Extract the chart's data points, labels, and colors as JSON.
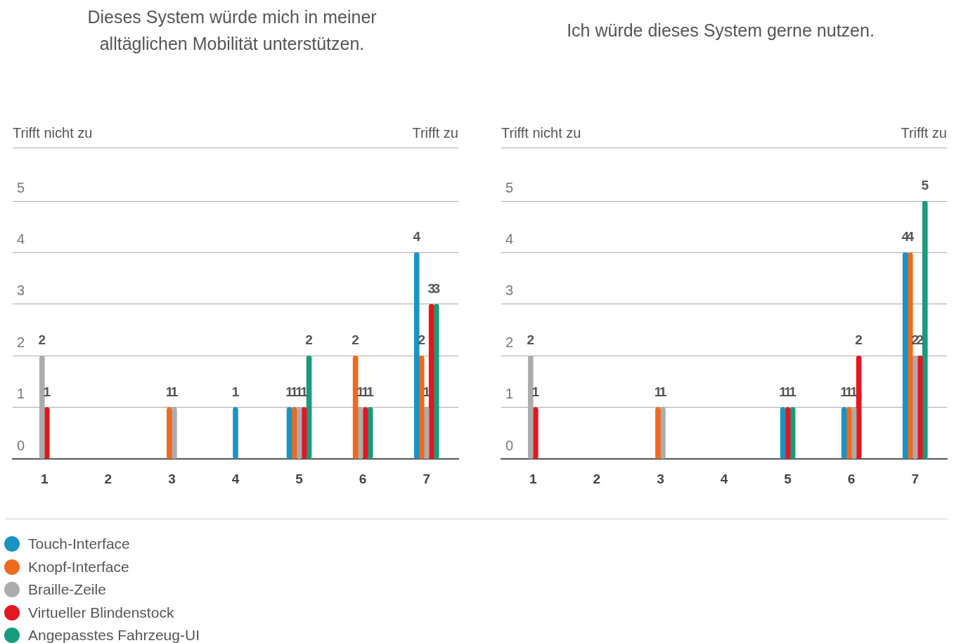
{
  "chart_data": [
    {
      "type": "bar",
      "title": "Dieses System würde mich in meiner alltäglichen Mobilität unterstützen.",
      "annotations": [
        "Trifft nicht zu",
        "Trifft zu"
      ],
      "categories": [
        "1",
        "2",
        "3",
        "4",
        "5",
        "6",
        "7"
      ],
      "series": [
        {
          "name": "Touch-Interface",
          "color": "#1a93c2",
          "values": [
            null,
            null,
            null,
            1,
            1,
            null,
            4
          ]
        },
        {
          "name": "Knopf-Interface",
          "color": "#ee6a1c",
          "values": [
            null,
            null,
            1,
            null,
            1,
            2,
            2
          ]
        },
        {
          "name": "Braille-Zeile",
          "color": "#acacac",
          "values": [
            2,
            null,
            1,
            null,
            1,
            1,
            1
          ]
        },
        {
          "name": "Virtueller Blindenstock",
          "color": "#e4161f",
          "values": [
            1,
            null,
            null,
            null,
            1,
            1,
            3
          ]
        },
        {
          "name": "Angepasstes Fahrzeug-UI",
          "color": "#179c7d",
          "values": [
            null,
            null,
            null,
            null,
            2,
            1,
            3
          ]
        }
      ],
      "ylim": [
        0,
        5
      ],
      "yticks": [
        0,
        1,
        2,
        3,
        4,
        5
      ],
      "grid": "y",
      "data_labels": true,
      "legend": "bottom"
    },
    {
      "type": "bar",
      "title": "Ich würde dieses System gerne nutzen.",
      "annotations": [
        "Trifft nicht zu",
        "Trifft zu"
      ],
      "categories": [
        "1",
        "2",
        "3",
        "4",
        "5",
        "6",
        "7"
      ],
      "series": [
        {
          "color": "#1a93c2",
          "values": [
            null,
            null,
            null,
            null,
            1,
            1,
            4
          ]
        },
        {
          "color": "#ee6a1c",
          "values": [
            null,
            null,
            1,
            null,
            null,
            1,
            4
          ]
        },
        {
          "color": "#acacac",
          "values": [
            2,
            null,
            1,
            null,
            null,
            1,
            2
          ]
        },
        {
          "color": "#e4161f",
          "values": [
            1,
            null,
            null,
            null,
            1,
            2,
            2
          ]
        },
        {
          "color": "#179c7d",
          "values": [
            null,
            null,
            null,
            null,
            1,
            null,
            5
          ]
        }
      ],
      "ylim": [
        0,
        5
      ],
      "yticks": [
        0,
        1,
        2,
        3,
        4,
        5
      ],
      "grid": "y",
      "data_labels": true
    }
  ]
}
